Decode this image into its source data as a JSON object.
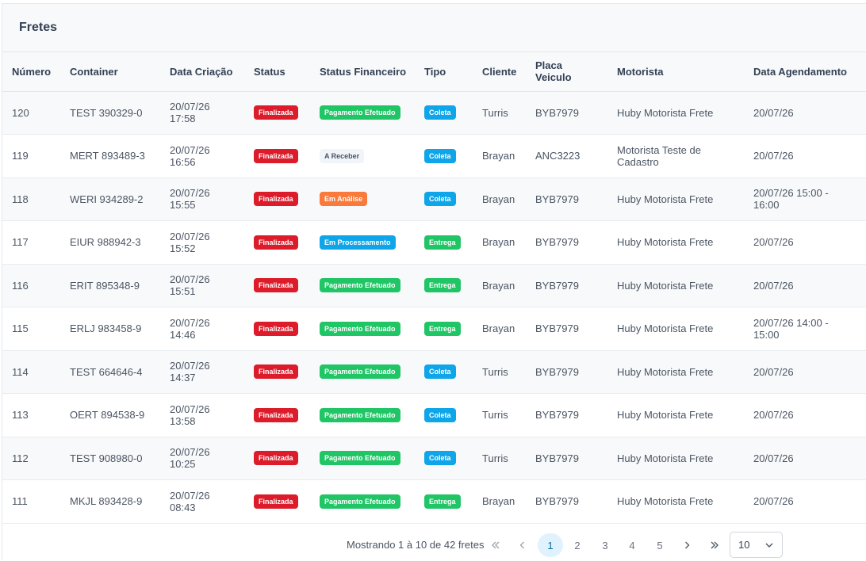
{
  "card": {
    "title": "Fretes"
  },
  "table": {
    "headers": [
      "Número",
      "Container",
      "Data Criação",
      "Status",
      "Status Financeiro",
      "Tipo",
      "Cliente",
      "Placa Veiculo",
      "Motorista",
      "Data Agendamento"
    ],
    "rows": [
      {
        "numero": "120",
        "container": "TEST 390329-0",
        "data": "20/07/26 17:58",
        "status": "Finalizada",
        "financeiro": "Pagamento Efetuado",
        "tipo": "Coleta",
        "cliente": "Turris",
        "placa": "BYB7979",
        "motorista": "Huby Motorista Frete",
        "agendamento": "20/07/26"
      },
      {
        "numero": "119",
        "container": "MERT 893489-3",
        "data": "20/07/26 16:56",
        "status": "Finalizada",
        "financeiro": "A Receber",
        "tipo": "Coleta",
        "cliente": "Brayan",
        "placa": "ANC3223",
        "motorista": "Motorista Teste de Cadastro",
        "agendamento": "20/07/26"
      },
      {
        "numero": "118",
        "container": "WERI 934289-2",
        "data": "20/07/26 15:55",
        "status": "Finalizada",
        "financeiro": "Em Análise",
        "tipo": "Coleta",
        "cliente": "Brayan",
        "placa": "BYB7979",
        "motorista": "Huby Motorista Frete",
        "agendamento": "20/07/26 15:00 - 16:00"
      },
      {
        "numero": "117",
        "container": "EIUR 988942-3",
        "data": "20/07/26 15:52",
        "status": "Finalizada",
        "financeiro": "Em Processamento",
        "tipo": "Entrega",
        "cliente": "Brayan",
        "placa": "BYB7979",
        "motorista": "Huby Motorista Frete",
        "agendamento": "20/07/26"
      },
      {
        "numero": "116",
        "container": "ERIT 895348-9",
        "data": "20/07/26 15:51",
        "status": "Finalizada",
        "financeiro": "Pagamento Efetuado",
        "tipo": "Entrega",
        "cliente": "Brayan",
        "placa": "BYB7979",
        "motorista": "Huby Motorista Frete",
        "agendamento": "20/07/26"
      },
      {
        "numero": "115",
        "container": "ERLJ 983458-9",
        "data": "20/07/26 14:46",
        "status": "Finalizada",
        "financeiro": "Pagamento Efetuado",
        "tipo": "Entrega",
        "cliente": "Brayan",
        "placa": "BYB7979",
        "motorista": "Huby Motorista Frete",
        "agendamento": "20/07/26 14:00 - 15:00"
      },
      {
        "numero": "114",
        "container": "TEST 664646-4",
        "data": "20/07/26 14:37",
        "status": "Finalizada",
        "financeiro": "Pagamento Efetuado",
        "tipo": "Coleta",
        "cliente": "Turris",
        "placa": "BYB7979",
        "motorista": "Huby Motorista Frete",
        "agendamento": "20/07/26"
      },
      {
        "numero": "113",
        "container": "OERT 894538-9",
        "data": "20/07/26 13:58",
        "status": "Finalizada",
        "financeiro": "Pagamento Efetuado",
        "tipo": "Coleta",
        "cliente": "Turris",
        "placa": "BYB7979",
        "motorista": "Huby Motorista Frete",
        "agendamento": "20/07/26"
      },
      {
        "numero": "112",
        "container": "TEST 908980-0",
        "data": "20/07/26 10:25",
        "status": "Finalizada",
        "financeiro": "Pagamento Efetuado",
        "tipo": "Coleta",
        "cliente": "Turris",
        "placa": "BYB7979",
        "motorista": "Huby Motorista Frete",
        "agendamento": "20/07/26"
      },
      {
        "numero": "111",
        "container": "MKJL 893428-9",
        "data": "20/07/26 08:43",
        "status": "Finalizada",
        "financeiro": "Pagamento Efetuado",
        "tipo": "Entrega",
        "cliente": "Brayan",
        "placa": "BYB7979",
        "motorista": "Huby Motorista Frete",
        "agendamento": "20/07/26"
      }
    ]
  },
  "badge_colors": {
    "Finalizada": "#dc1c2a",
    "Pagamento Efetuado": "#20c565",
    "A Receber": "#f1f5f9",
    "Em Análise": "#f97a3a",
    "Em Processamento": "#0ea5e9",
    "Coleta": "#0ea5e9",
    "Entrega": "#20c565"
  },
  "paginator": {
    "report": "Mostrando 1 à 10 de 42 fretes",
    "first_icon": "double-chevron-left-icon",
    "prev_icon": "chevron-left-icon",
    "pages": [
      "1",
      "2",
      "3",
      "4",
      "5"
    ],
    "current_page": "1",
    "next_icon": "chevron-right-icon",
    "last_icon": "double-chevron-right-icon",
    "rows_per_page": "10"
  }
}
